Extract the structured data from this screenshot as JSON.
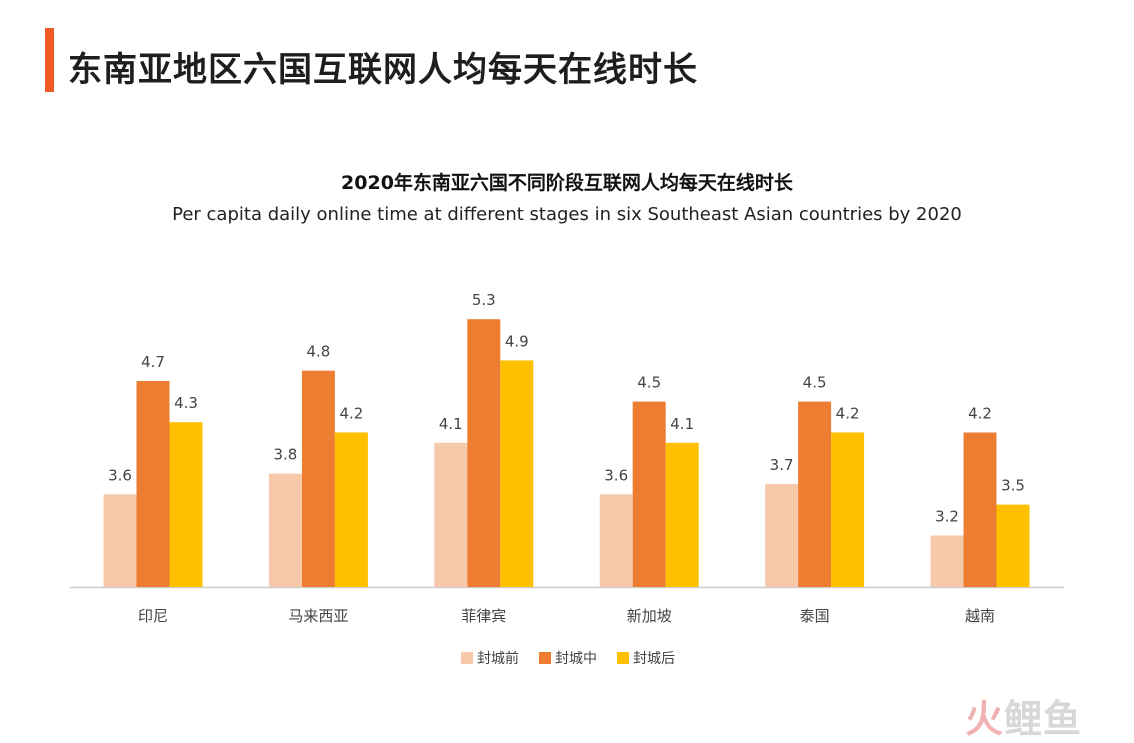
{
  "header": {
    "title": "东南亚地区六国互联网人均每天在线时长"
  },
  "colors": {
    "accent": "#f15a24",
    "before": "#f5c9aa",
    "during": "#ed7d31",
    "after": "#ffc000",
    "axis": "#cccccc",
    "label": "#444444"
  },
  "chart_data": {
    "type": "bar",
    "title": "2020年东南亚六国不同阶段互联网人均每天在线时长",
    "subtitle": "Per capita daily online time at different stages in six Southeast Asian countries by 2020",
    "categories": [
      "印尼",
      "马来西亚",
      "菲律宾",
      "新加坡",
      "泰国",
      "越南"
    ],
    "series": [
      {
        "name": "封城前",
        "values": [
          3.6,
          3.8,
          4.1,
          3.6,
          3.7,
          3.2
        ]
      },
      {
        "name": "封城中",
        "values": [
          4.7,
          4.8,
          5.3,
          4.5,
          4.5,
          4.2
        ]
      },
      {
        "name": "封城后",
        "values": [
          4.3,
          4.2,
          4.9,
          4.1,
          4.2,
          3.5
        ]
      }
    ],
    "ylim": [
      2.7,
      5.5
    ],
    "xlabel": "",
    "ylabel": "",
    "grid": false,
    "legend": "bottom"
  },
  "watermark": {
    "fire": "火",
    "rest": "鲤鱼"
  }
}
